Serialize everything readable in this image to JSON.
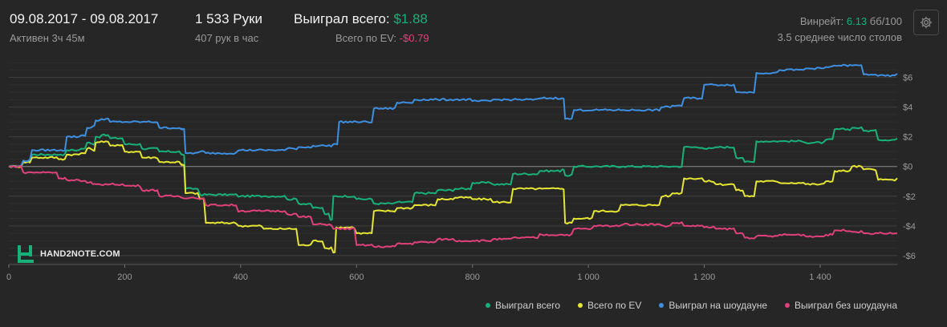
{
  "header": {
    "date_range": "09.08.2017 - 09.08.2017",
    "active": "Активен 3ч 45м",
    "hands": "1 533 Руки",
    "hands_per_hour": "407 рук в час",
    "won_total_label": "Выиграл всего:",
    "won_total_value": "$1.88",
    "ev_label": "Всего по EV:",
    "ev_value": "-$0.79",
    "winrate_label": "Винрейт:",
    "winrate_value": "6.13",
    "winrate_unit": "бб/100",
    "avg_tables": "3.5 среднее число столов"
  },
  "logo": {
    "brand": "HAND2NOTE.COM"
  },
  "icons": {
    "settings": "gear-icon",
    "brand": "hand2note-logo-icon"
  },
  "colors": {
    "background": "#262626",
    "won_total": "#19b07a",
    "ev": "#e5e534",
    "showdown": "#3f8fe0",
    "nonshowdown": "#e0417b",
    "negative": "#e0417b"
  },
  "chart_data": {
    "type": "line",
    "xlim": [
      0,
      1533
    ],
    "ylim": [
      -6.6,
      7.0
    ],
    "x_ticks": [
      0,
      200,
      400,
      600,
      800,
      1000,
      1200,
      1400
    ],
    "x_tick_labels": [
      "0",
      "200",
      "400",
      "600",
      "800",
      "1 000",
      "1 200",
      "1 400"
    ],
    "y_ticks": [
      6,
      4,
      2,
      0,
      -2,
      -4,
      -6
    ],
    "y_tick_labels": [
      "$6",
      "$4",
      "$2",
      "$0",
      "-$2",
      "-$4",
      "-$6"
    ],
    "grid": true,
    "legend_position": "bottom-right",
    "series": [
      {
        "name": "Выиграл всего",
        "color": "#19b07a",
        "points": [
          [
            0,
            0
          ],
          [
            25,
            0.3
          ],
          [
            40,
            0.8
          ],
          [
            90,
            0.8
          ],
          [
            100,
            1.1
          ],
          [
            125,
            1.2
          ],
          [
            135,
            1.6
          ],
          [
            145,
            1.5
          ],
          [
            150,
            2.0
          ],
          [
            160,
            2.1
          ],
          [
            175,
            1.9
          ],
          [
            200,
            1.5
          ],
          [
            230,
            1.2
          ],
          [
            260,
            1.0
          ],
          [
            298,
            0.8
          ],
          [
            300,
            0.8
          ],
          [
            305,
            -1.5
          ],
          [
            330,
            -1.9
          ],
          [
            400,
            -2.0
          ],
          [
            440,
            -2.0
          ],
          [
            480,
            -2.2
          ],
          [
            500,
            -2.5
          ],
          [
            525,
            -2.8
          ],
          [
            545,
            -3.2
          ],
          [
            555,
            -3.6
          ],
          [
            560,
            -2.0
          ],
          [
            600,
            -2.2
          ],
          [
            630,
            -2.5
          ],
          [
            670,
            -2.4
          ],
          [
            700,
            -1.8
          ],
          [
            740,
            -1.6
          ],
          [
            770,
            -1.5
          ],
          [
            800,
            -1.1
          ],
          [
            835,
            -1.2
          ],
          [
            870,
            -0.5
          ],
          [
            920,
            -0.3
          ],
          [
            955,
            -0.2
          ],
          [
            960,
            -0.6
          ],
          [
            975,
            0.0
          ],
          [
            1010,
            0.0
          ],
          [
            1060,
            0.0
          ],
          [
            1130,
            0.0
          ],
          [
            1145,
            0.0
          ],
          [
            1165,
            1.3
          ],
          [
            1200,
            1.2
          ],
          [
            1220,
            1.3
          ],
          [
            1255,
            0.6
          ],
          [
            1270,
            0.3
          ],
          [
            1290,
            1.7
          ],
          [
            1330,
            1.7
          ],
          [
            1375,
            1.6
          ],
          [
            1410,
            1.8
          ],
          [
            1425,
            2.5
          ],
          [
            1455,
            2.6
          ],
          [
            1475,
            2.4
          ],
          [
            1500,
            1.8
          ],
          [
            1533,
            1.88
          ]
        ]
      },
      {
        "name": "Всего по EV",
        "color": "#e5e534",
        "points": [
          [
            0,
            0
          ],
          [
            25,
            0.3
          ],
          [
            40,
            0.6
          ],
          [
            90,
            0.5
          ],
          [
            100,
            0.8
          ],
          [
            125,
            0.9
          ],
          [
            135,
            1.2
          ],
          [
            145,
            1.1
          ],
          [
            150,
            1.6
          ],
          [
            160,
            1.7
          ],
          [
            175,
            1.4
          ],
          [
            200,
            1.0
          ],
          [
            230,
            0.6
          ],
          [
            260,
            0.3
          ],
          [
            298,
            0.1
          ],
          [
            300,
            0.1
          ],
          [
            305,
            -1.8
          ],
          [
            330,
            -2.2
          ],
          [
            340,
            -3.8
          ],
          [
            400,
            -4.0
          ],
          [
            440,
            -4.2
          ],
          [
            480,
            -4.2
          ],
          [
            500,
            -5.3
          ],
          [
            525,
            -5.0
          ],
          [
            545,
            -5.5
          ],
          [
            560,
            -5.8
          ],
          [
            565,
            -4.1
          ],
          [
            600,
            -4.5
          ],
          [
            630,
            -3.0
          ],
          [
            670,
            -2.8
          ],
          [
            700,
            -2.6
          ],
          [
            740,
            -2.2
          ],
          [
            770,
            -2.1
          ],
          [
            800,
            -2.2
          ],
          [
            835,
            -2.4
          ],
          [
            870,
            -1.5
          ],
          [
            920,
            -1.5
          ],
          [
            955,
            -1.5
          ],
          [
            960,
            -3.8
          ],
          [
            975,
            -3.5
          ],
          [
            1010,
            -3.0
          ],
          [
            1060,
            -2.6
          ],
          [
            1130,
            -2.0
          ],
          [
            1145,
            -1.8
          ],
          [
            1165,
            -0.8
          ],
          [
            1200,
            -1.0
          ],
          [
            1220,
            -1.2
          ],
          [
            1255,
            -1.6
          ],
          [
            1270,
            -2.0
          ],
          [
            1290,
            -1.0
          ],
          [
            1330,
            -1.1
          ],
          [
            1375,
            -1.2
          ],
          [
            1410,
            -1.0
          ],
          [
            1425,
            -0.3
          ],
          [
            1455,
            0.0
          ],
          [
            1475,
            -0.2
          ],
          [
            1500,
            -0.9
          ],
          [
            1533,
            -0.79
          ]
        ]
      },
      {
        "name": "Выиграл на шоудауне",
        "color": "#3f8fe0",
        "points": [
          [
            0,
            0
          ],
          [
            25,
            0.4
          ],
          [
            40,
            1.1
          ],
          [
            90,
            1.1
          ],
          [
            100,
            2.0
          ],
          [
            125,
            2.1
          ],
          [
            135,
            2.6
          ],
          [
            145,
            2.7
          ],
          [
            150,
            3.1
          ],
          [
            160,
            3.2
          ],
          [
            175,
            3.0
          ],
          [
            200,
            3.0
          ],
          [
            230,
            3.0
          ],
          [
            260,
            2.6
          ],
          [
            298,
            2.5
          ],
          [
            300,
            2.5
          ],
          [
            305,
            0.9
          ],
          [
            330,
            1.0
          ],
          [
            340,
            0.9
          ],
          [
            400,
            1.1
          ],
          [
            440,
            1.1
          ],
          [
            480,
            1.2
          ],
          [
            500,
            1.3
          ],
          [
            525,
            1.4
          ],
          [
            545,
            1.4
          ],
          [
            560,
            1.5
          ],
          [
            570,
            3.0
          ],
          [
            600,
            3.0
          ],
          [
            630,
            3.9
          ],
          [
            670,
            4.3
          ],
          [
            700,
            4.5
          ],
          [
            740,
            4.5
          ],
          [
            770,
            4.5
          ],
          [
            800,
            4.4
          ],
          [
            835,
            4.5
          ],
          [
            870,
            4.5
          ],
          [
            920,
            4.6
          ],
          [
            955,
            4.6
          ],
          [
            960,
            3.2
          ],
          [
            975,
            3.8
          ],
          [
            1010,
            3.8
          ],
          [
            1060,
            3.8
          ],
          [
            1130,
            4.0
          ],
          [
            1145,
            4.1
          ],
          [
            1165,
            4.6
          ],
          [
            1200,
            5.5
          ],
          [
            1220,
            5.5
          ],
          [
            1255,
            5.0
          ],
          [
            1270,
            5.0
          ],
          [
            1290,
            6.3
          ],
          [
            1330,
            6.5
          ],
          [
            1375,
            6.6
          ],
          [
            1410,
            6.7
          ],
          [
            1425,
            6.8
          ],
          [
            1455,
            6.8
          ],
          [
            1475,
            6.2
          ],
          [
            1500,
            6.1
          ],
          [
            1533,
            6.25
          ]
        ]
      },
      {
        "name": "Выиграл без шоудауна",
        "color": "#e0417b",
        "points": [
          [
            0,
            0
          ],
          [
            25,
            -0.4
          ],
          [
            40,
            -0.4
          ],
          [
            90,
            -0.8
          ],
          [
            100,
            -0.9
          ],
          [
            125,
            -1.0
          ],
          [
            135,
            -1.1
          ],
          [
            145,
            -1.2
          ],
          [
            150,
            -1.2
          ],
          [
            175,
            -1.2
          ],
          [
            200,
            -1.3
          ],
          [
            230,
            -1.6
          ],
          [
            260,
            -2.0
          ],
          [
            298,
            -2.1
          ],
          [
            330,
            -2.2
          ],
          [
            340,
            -2.6
          ],
          [
            400,
            -3.0
          ],
          [
            440,
            -3.0
          ],
          [
            480,
            -3.2
          ],
          [
            500,
            -3.4
          ],
          [
            525,
            -3.9
          ],
          [
            545,
            -3.9
          ],
          [
            560,
            -4.2
          ],
          [
            600,
            -5.3
          ],
          [
            630,
            -5.4
          ],
          [
            670,
            -5.2
          ],
          [
            700,
            -5.1
          ],
          [
            740,
            -4.9
          ],
          [
            770,
            -5.0
          ],
          [
            800,
            -5.0
          ],
          [
            835,
            -4.9
          ],
          [
            870,
            -4.8
          ],
          [
            920,
            -4.6
          ],
          [
            955,
            -4.6
          ],
          [
            975,
            -4.2
          ],
          [
            1010,
            -4.0
          ],
          [
            1060,
            -3.9
          ],
          [
            1130,
            -4.0
          ],
          [
            1145,
            -3.8
          ],
          [
            1165,
            -4.0
          ],
          [
            1200,
            -4.1
          ],
          [
            1220,
            -4.2
          ],
          [
            1255,
            -4.5
          ],
          [
            1270,
            -4.8
          ],
          [
            1290,
            -4.7
          ],
          [
            1330,
            -4.6
          ],
          [
            1375,
            -4.7
          ],
          [
            1410,
            -4.6
          ],
          [
            1425,
            -4.3
          ],
          [
            1455,
            -4.4
          ],
          [
            1475,
            -4.5
          ],
          [
            1500,
            -4.5
          ],
          [
            1533,
            -4.5
          ]
        ]
      }
    ]
  }
}
